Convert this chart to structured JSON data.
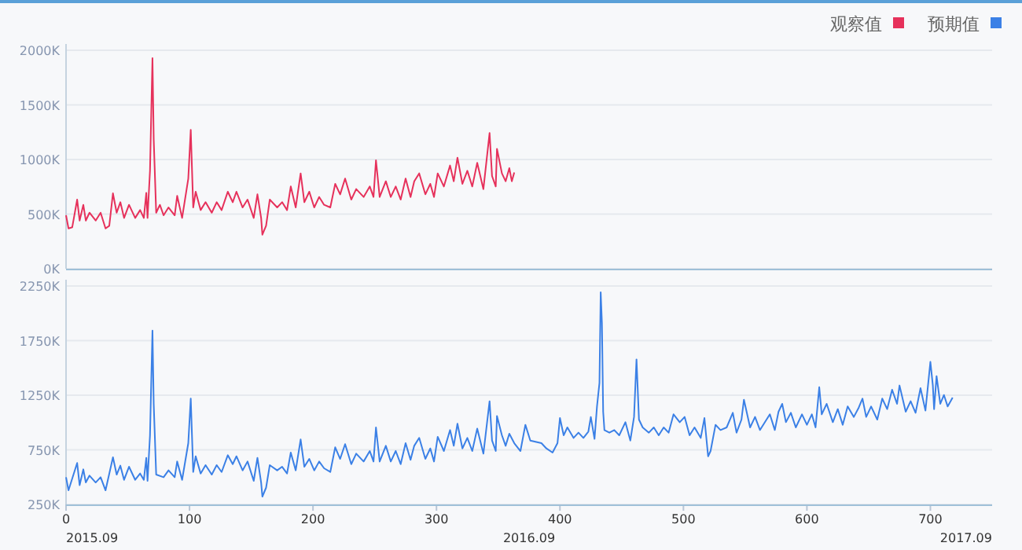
{
  "chart_data": [
    {
      "type": "line",
      "series": [
        {
          "name": "观察值",
          "color": "#e6315b",
          "x": [
            0,
            2,
            5,
            9,
            11,
            14,
            16,
            19,
            24,
            28,
            32,
            35,
            38,
            41,
            44,
            47,
            51,
            56,
            60,
            63,
            65,
            66,
            68,
            70,
            71,
            73,
            76,
            79,
            83,
            88,
            90,
            94,
            99,
            101,
            103,
            105,
            109,
            113,
            118,
            122,
            126,
            131,
            135,
            138,
            143,
            147,
            152,
            155,
            158,
            159,
            162,
            165,
            171,
            175,
            179,
            182,
            186,
            190,
            193,
            197,
            201,
            205,
            209,
            214,
            218,
            222,
            226,
            231,
            235,
            241,
            246,
            249,
            251,
            254,
            259,
            263,
            267,
            271,
            275,
            279,
            282,
            286,
            291,
            295,
            298,
            301,
            306,
            311,
            314,
            317,
            321,
            325,
            329,
            333,
            338,
            343,
            345,
            348,
            349,
            353,
            356,
            359,
            361,
            363
          ],
          "values": [
            489,
            369,
            379,
            633,
            441,
            585,
            441,
            513,
            441,
            513,
            369,
            393,
            690,
            513,
            609,
            465,
            585,
            465,
            537,
            465,
            695,
            465,
            897,
            1928,
            1185,
            513,
            585,
            489,
            561,
            489,
            667,
            465,
            825,
            1271,
            561,
            705,
            537,
            609,
            513,
            609,
            537,
            705,
            609,
            705,
            561,
            633,
            465,
            681,
            465,
            312,
            393,
            633,
            561,
            609,
            537,
            753,
            561,
            873,
            609,
            705,
            561,
            657,
            585,
            561,
            777,
            681,
            825,
            633,
            729,
            657,
            753,
            657,
            993,
            657,
            801,
            657,
            753,
            633,
            825,
            657,
            801,
            873,
            681,
            777,
            657,
            873,
            753,
            945,
            801,
            1017,
            777,
            897,
            753,
            969,
            729,
            1242,
            849,
            753,
            1098,
            873,
            801,
            921,
            801,
            882
          ]
        }
      ],
      "xlim": [
        0,
        750
      ],
      "ylim": [
        0,
        2000
      ],
      "yticks": [
        {
          "value": 0,
          "label": "0K"
        },
        {
          "value": 500,
          "label": "500K"
        },
        {
          "value": 1000,
          "label": "1000K"
        },
        {
          "value": 1500,
          "label": "1500K"
        },
        {
          "value": 2000,
          "label": "2000K"
        }
      ],
      "grid": "y",
      "legend": "top right",
      "tick_labels": "y"
    },
    {
      "type": "line",
      "series": [
        {
          "name": "预期值",
          "color": "#3b80e6",
          "x": [
            0,
            2,
            9,
            11,
            14,
            16,
            19,
            24,
            28,
            32,
            38,
            41,
            44,
            47,
            51,
            56,
            60,
            63,
            65,
            66,
            68,
            70,
            71,
            73,
            79,
            83,
            88,
            90,
            94,
            99,
            101,
            103,
            105,
            109,
            113,
            118,
            122,
            126,
            131,
            135,
            138,
            143,
            147,
            152,
            155,
            158,
            159,
            162,
            165,
            171,
            175,
            179,
            182,
            186,
            190,
            193,
            197,
            201,
            205,
            209,
            214,
            218,
            222,
            226,
            231,
            235,
            241,
            246,
            249,
            251,
            254,
            259,
            263,
            267,
            271,
            275,
            279,
            282,
            286,
            291,
            295,
            298,
            301,
            306,
            311,
            314,
            317,
            321,
            325,
            329,
            333,
            338,
            343,
            345,
            348,
            349,
            353,
            356,
            359,
            363,
            368,
            372,
            376,
            385,
            389,
            394,
            398,
            400,
            403,
            406,
            411,
            415,
            419,
            423,
            425,
            428,
            430,
            432,
            433,
            434,
            435,
            436,
            440,
            444,
            448,
            453,
            457,
            460,
            462,
            464,
            467,
            472,
            476,
            480,
            484,
            488,
            492,
            497,
            501,
            505,
            509,
            514,
            517,
            520,
            522,
            526,
            530,
            535,
            540,
            543,
            547,
            549,
            554,
            558,
            562,
            566,
            570,
            574,
            577,
            580,
            583,
            587,
            591,
            596,
            600,
            604,
            607,
            610,
            612,
            616,
            621,
            625,
            629,
            633,
            638,
            642,
            645,
            648,
            652,
            657,
            661,
            665,
            669,
            673,
            675,
            680,
            684,
            688,
            692,
            696,
            700,
            702,
            703,
            705,
            708,
            711,
            714,
            718
          ],
          "values": [
            499,
            379,
            629,
            427,
            571,
            451,
            514,
            451,
            499,
            379,
            682,
            523,
            605,
            475,
            595,
            475,
            533,
            475,
            677,
            466,
            883,
            1842,
            1171,
            523,
            499,
            562,
            499,
            643,
            475,
            811,
            1219,
            547,
            691,
            533,
            610,
            523,
            610,
            547,
            701,
            619,
            691,
            562,
            643,
            466,
            677,
            451,
            322,
            403,
            610,
            562,
            595,
            533,
            725,
            562,
            845,
            595,
            667,
            562,
            643,
            581,
            547,
            773,
            667,
            802,
            619,
            715,
            643,
            739,
            643,
            955,
            643,
            787,
            643,
            739,
            619,
            811,
            658,
            787,
            859,
            667,
            763,
            643,
            869,
            739,
            931,
            787,
            989,
            763,
            859,
            739,
            945,
            715,
            1195,
            835,
            739,
            1060,
            883,
            787,
            897,
            811,
            739,
            979,
            835,
            811,
            763,
            725,
            811,
            1041,
            883,
            955,
            859,
            907,
            859,
            917,
            1051,
            850,
            1147,
            1363,
            2192,
            1914,
            1099,
            931,
            907,
            931,
            883,
            1003,
            835,
            1051,
            1578,
            1027,
            955,
            907,
            955,
            883,
            955,
            907,
            1075,
            1003,
            1051,
            883,
            955,
            859,
            1041,
            691,
            739,
            979,
            931,
            955,
            1089,
            907,
            1027,
            1209,
            955,
            1051,
            931,
            1003,
            1075,
            931,
            1099,
            1171,
            1003,
            1089,
            955,
            1075,
            979,
            1075,
            955,
            1324,
            1075,
            1171,
            1003,
            1123,
            979,
            1147,
            1051,
            1137,
            1219,
            1051,
            1147,
            1027,
            1219,
            1123,
            1300,
            1171,
            1339,
            1099,
            1195,
            1089,
            1315,
            1109,
            1555,
            1339,
            1123,
            1425,
            1171,
            1252,
            1147,
            1228
          ]
        }
      ],
      "xlim": [
        0,
        750
      ],
      "ylim": [
        250,
        2250
      ],
      "yticks": [
        {
          "value": 250,
          "label": "250K"
        },
        {
          "value": 750,
          "label": "750K"
        },
        {
          "value": 1250,
          "label": "1250K"
        },
        {
          "value": 1750,
          "label": "1750K"
        },
        {
          "value": 2250,
          "label": "2250K"
        }
      ],
      "xticks": [
        0,
        100,
        200,
        300,
        400,
        500,
        600,
        700
      ],
      "grid": "y",
      "legend": "top right",
      "annotations": [
        "2015.09",
        "2016.09",
        "2017.09"
      ]
    }
  ]
}
